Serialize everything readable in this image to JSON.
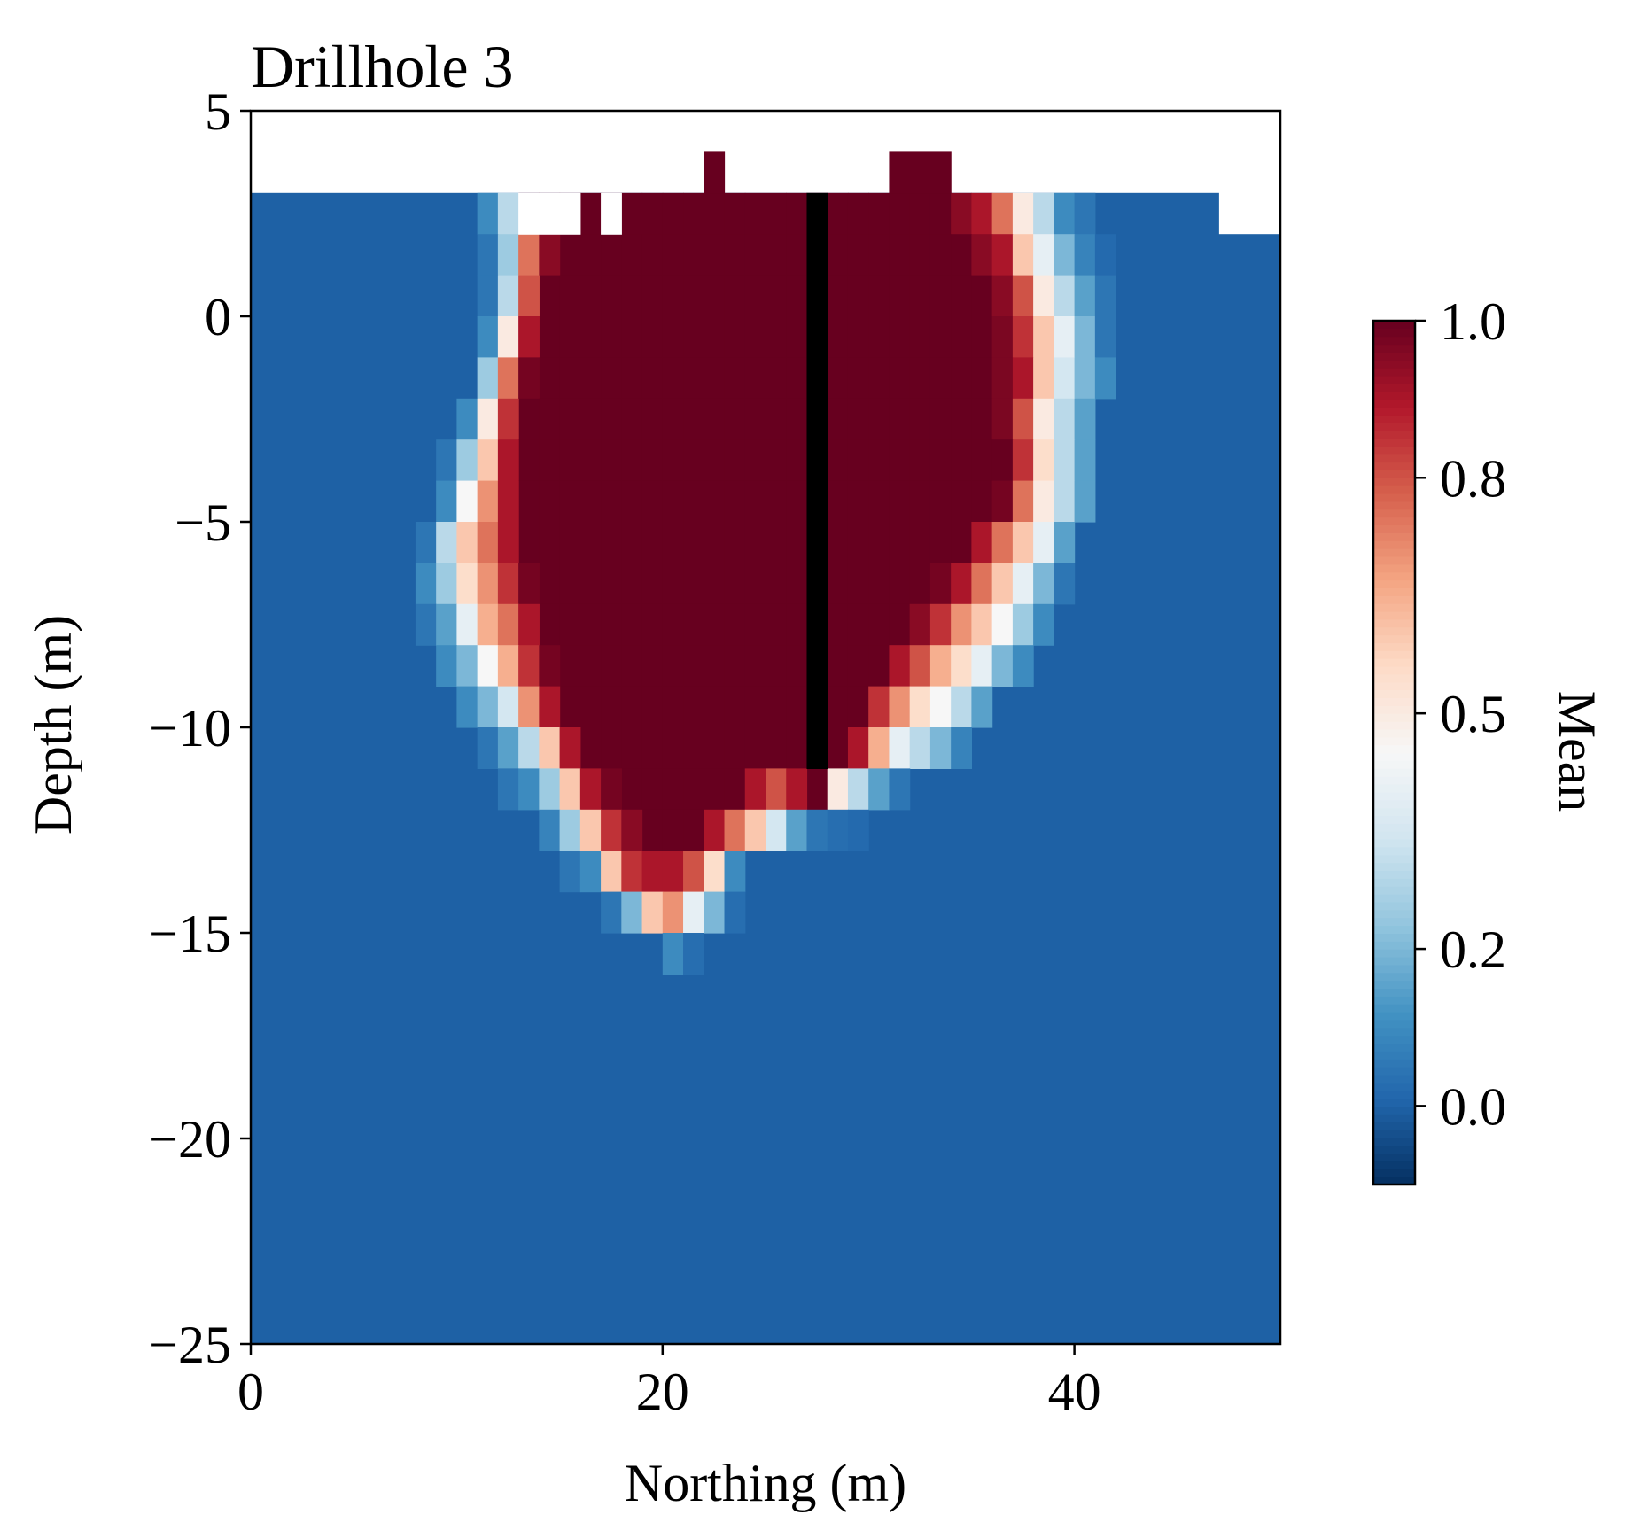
{
  "chart_data": {
    "type": "heatmap",
    "title": "Drillhole 3",
    "xlabel": "Northing (m)",
    "ylabel": "Depth (m)",
    "xlim": [
      0,
      50
    ],
    "ylim": [
      -25,
      5
    ],
    "x_ticks": [
      0,
      20,
      40
    ],
    "x_tick_labels": [
      "0",
      "20",
      "40"
    ],
    "y_ticks": [
      5,
      0,
      -5,
      -10,
      -15,
      -20,
      -25
    ],
    "y_tick_labels": [
      "5",
      "0",
      "−5",
      "−10",
      "−15",
      "−20",
      "−25"
    ],
    "grid": false,
    "colormap": "RdBu_r",
    "colorbar": {
      "label": "Mean",
      "range": [
        -0.1,
        1.0
      ],
      "ticks": [
        0.0,
        0.2,
        0.5,
        0.8,
        1.0
      ],
      "tick_labels": [
        "0.0",
        "0.2",
        "0.5",
        "0.8",
        "1.0"
      ]
    },
    "cell_size_m": 1,
    "x0": 0,
    "top_y": 5,
    "background_value": 0.0,
    "drillhole": {
      "x_from": 27,
      "x_to": 28,
      "y_top": 3,
      "y_bottom": -11,
      "color": "#000000"
    },
    "surface_profile": [
      {
        "x_from": 0,
        "x_to": 47,
        "top": 3
      },
      {
        "x_from": 47,
        "x_to": 50,
        "top": 2
      }
    ],
    "surface_gaps": [
      {
        "x_from": 13,
        "x_to": 16,
        "y_from": 2,
        "y_to": 3
      },
      {
        "x_from": 17,
        "x_to": 18,
        "y_from": 2,
        "y_to": 3
      }
    ],
    "surface_bumps": [
      {
        "x_from": 22,
        "x_to": 23,
        "y_from": 3,
        "y_to": 4,
        "value": 1.0
      },
      {
        "x_from": 31,
        "x_to": 34,
        "y_from": 3,
        "y_to": 4,
        "value": 1.0
      }
    ],
    "rows": [
      {
        "y_top": 3,
        "cells": [
          [
            11,
            0.1
          ],
          [
            12,
            0.3
          ],
          [
            16,
            1.0
          ],
          [
            18,
            1.0
          ],
          [
            34,
            0.95
          ],
          [
            35,
            0.9
          ],
          [
            36,
            0.75
          ],
          [
            37,
            0.5
          ],
          [
            38,
            0.3
          ],
          [
            39,
            0.1
          ],
          [
            40,
            0.05
          ]
        ]
      },
      {
        "y_top": 2,
        "cells": [
          [
            11,
            0.05
          ],
          [
            12,
            0.25
          ],
          [
            13,
            0.75
          ],
          [
            14,
            0.95
          ],
          [
            35,
            0.95
          ],
          [
            36,
            0.9
          ],
          [
            37,
            0.6
          ],
          [
            38,
            0.4
          ],
          [
            39,
            0.2
          ],
          [
            40,
            0.08
          ],
          [
            41,
            0.02
          ]
        ]
      },
      {
        "y_top": 1,
        "cells": [
          [
            11,
            0.05
          ],
          [
            12,
            0.3
          ],
          [
            13,
            0.8
          ],
          [
            36,
            0.95
          ],
          [
            37,
            0.8
          ],
          [
            38,
            0.5
          ],
          [
            39,
            0.3
          ],
          [
            40,
            0.15
          ],
          [
            41,
            0.05
          ]
        ]
      },
      {
        "y_top": 0,
        "cells": [
          [
            11,
            0.1
          ],
          [
            12,
            0.5
          ],
          [
            13,
            0.9
          ],
          [
            36,
            0.97
          ],
          [
            37,
            0.85
          ],
          [
            38,
            0.6
          ],
          [
            39,
            0.4
          ],
          [
            40,
            0.2
          ],
          [
            41,
            0.05
          ]
        ]
      },
      {
        "y_top": -1,
        "cells": [
          [
            11,
            0.25
          ],
          [
            12,
            0.75
          ],
          [
            13,
            0.98
          ],
          [
            36,
            0.97
          ],
          [
            37,
            0.9
          ],
          [
            38,
            0.6
          ],
          [
            39,
            0.35
          ],
          [
            40,
            0.2
          ],
          [
            41,
            0.1
          ]
        ]
      },
      {
        "y_top": -2,
        "cells": [
          [
            10,
            0.1
          ],
          [
            11,
            0.5
          ],
          [
            12,
            0.85
          ],
          [
            36,
            0.97
          ],
          [
            37,
            0.8
          ],
          [
            38,
            0.5
          ],
          [
            39,
            0.3
          ],
          [
            40,
            0.15
          ]
        ]
      },
      {
        "y_top": -3,
        "cells": [
          [
            9,
            0.05
          ],
          [
            10,
            0.25
          ],
          [
            11,
            0.6
          ],
          [
            12,
            0.9
          ],
          [
            37,
            0.85
          ],
          [
            38,
            0.55
          ],
          [
            39,
            0.3
          ],
          [
            40,
            0.15
          ]
        ]
      },
      {
        "y_top": -4,
        "cells": [
          [
            9,
            0.1
          ],
          [
            10,
            0.45
          ],
          [
            11,
            0.7
          ],
          [
            12,
            0.9
          ],
          [
            36,
            0.98
          ],
          [
            37,
            0.75
          ],
          [
            38,
            0.5
          ],
          [
            39,
            0.3
          ],
          [
            40,
            0.15
          ]
        ]
      },
      {
        "y_top": -5,
        "cells": [
          [
            8,
            0.05
          ],
          [
            9,
            0.3
          ],
          [
            10,
            0.6
          ],
          [
            11,
            0.75
          ],
          [
            12,
            0.9
          ],
          [
            35,
            0.9
          ],
          [
            36,
            0.75
          ],
          [
            37,
            0.6
          ],
          [
            38,
            0.4
          ],
          [
            39,
            0.15
          ]
        ]
      },
      {
        "y_top": -6,
        "cells": [
          [
            8,
            0.1
          ],
          [
            9,
            0.25
          ],
          [
            10,
            0.55
          ],
          [
            11,
            0.7
          ],
          [
            12,
            0.85
          ],
          [
            13,
            0.98
          ],
          [
            33,
            0.98
          ],
          [
            34,
            0.9
          ],
          [
            35,
            0.75
          ],
          [
            36,
            0.6
          ],
          [
            37,
            0.4
          ],
          [
            38,
            0.2
          ],
          [
            39,
            0.05
          ]
        ]
      },
      {
        "y_top": -7,
        "cells": [
          [
            8,
            0.05
          ],
          [
            9,
            0.15
          ],
          [
            10,
            0.4
          ],
          [
            11,
            0.65
          ],
          [
            12,
            0.75
          ],
          [
            13,
            0.9
          ],
          [
            32,
            0.95
          ],
          [
            33,
            0.85
          ],
          [
            34,
            0.7
          ],
          [
            35,
            0.6
          ],
          [
            36,
            0.45
          ],
          [
            37,
            0.25
          ],
          [
            38,
            0.1
          ]
        ]
      },
      {
        "y_top": -8,
        "cells": [
          [
            9,
            0.1
          ],
          [
            10,
            0.2
          ],
          [
            11,
            0.45
          ],
          [
            12,
            0.65
          ],
          [
            13,
            0.85
          ],
          [
            14,
            0.98
          ],
          [
            31,
            0.9
          ],
          [
            32,
            0.8
          ],
          [
            33,
            0.65
          ],
          [
            34,
            0.55
          ],
          [
            35,
            0.4
          ],
          [
            36,
            0.2
          ],
          [
            37,
            0.1
          ]
        ]
      },
      {
        "y_top": -9,
        "cells": [
          [
            10,
            0.1
          ],
          [
            11,
            0.2
          ],
          [
            12,
            0.35
          ],
          [
            13,
            0.7
          ],
          [
            14,
            0.9
          ],
          [
            30,
            0.85
          ],
          [
            31,
            0.7
          ],
          [
            32,
            0.55
          ],
          [
            33,
            0.45
          ],
          [
            34,
            0.3
          ],
          [
            35,
            0.15
          ]
        ]
      },
      {
        "y_top": -10,
        "cells": [
          [
            11,
            0.05
          ],
          [
            12,
            0.15
          ],
          [
            13,
            0.3
          ],
          [
            14,
            0.6
          ],
          [
            15,
            0.9
          ],
          [
            29,
            0.9
          ],
          [
            30,
            0.65
          ],
          [
            31,
            0.4
          ],
          [
            32,
            0.3
          ],
          [
            33,
            0.2
          ],
          [
            34,
            0.08
          ]
        ]
      },
      {
        "y_top": -11,
        "cells": [
          [
            12,
            0.05
          ],
          [
            13,
            0.1
          ],
          [
            14,
            0.25
          ],
          [
            15,
            0.6
          ],
          [
            16,
            0.9
          ],
          [
            17,
            0.98
          ],
          [
            24,
            0.9
          ],
          [
            25,
            0.8
          ],
          [
            26,
            0.9
          ],
          [
            28,
            0.5
          ],
          [
            29,
            0.3
          ],
          [
            30,
            0.15
          ],
          [
            31,
            0.05
          ]
        ]
      },
      {
        "y_top": -12,
        "cells": [
          [
            14,
            0.08
          ],
          [
            15,
            0.25
          ],
          [
            16,
            0.6
          ],
          [
            17,
            0.85
          ],
          [
            18,
            0.95
          ],
          [
            22,
            0.9
          ],
          [
            23,
            0.75
          ],
          [
            24,
            0.6
          ],
          [
            25,
            0.35
          ],
          [
            26,
            0.15
          ],
          [
            27,
            0.05
          ],
          [
            28,
            0.03
          ],
          [
            29,
            0.02
          ]
        ]
      },
      {
        "y_top": -13,
        "cells": [
          [
            15,
            0.05
          ],
          [
            16,
            0.1
          ],
          [
            17,
            0.6
          ],
          [
            18,
            0.85
          ],
          [
            19,
            0.9
          ],
          [
            20,
            0.9
          ],
          [
            21,
            0.8
          ],
          [
            22,
            0.55
          ],
          [
            23,
            0.1
          ]
        ]
      },
      {
        "y_top": -14,
        "cells": [
          [
            17,
            0.05
          ],
          [
            18,
            0.2
          ],
          [
            19,
            0.6
          ],
          [
            20,
            0.7
          ],
          [
            21,
            0.4
          ],
          [
            22,
            0.2
          ],
          [
            23,
            0.03
          ]
        ]
      },
      {
        "y_top": -15,
        "cells": [
          [
            20,
            0.1
          ],
          [
            21,
            0.03
          ]
        ]
      }
    ]
  }
}
